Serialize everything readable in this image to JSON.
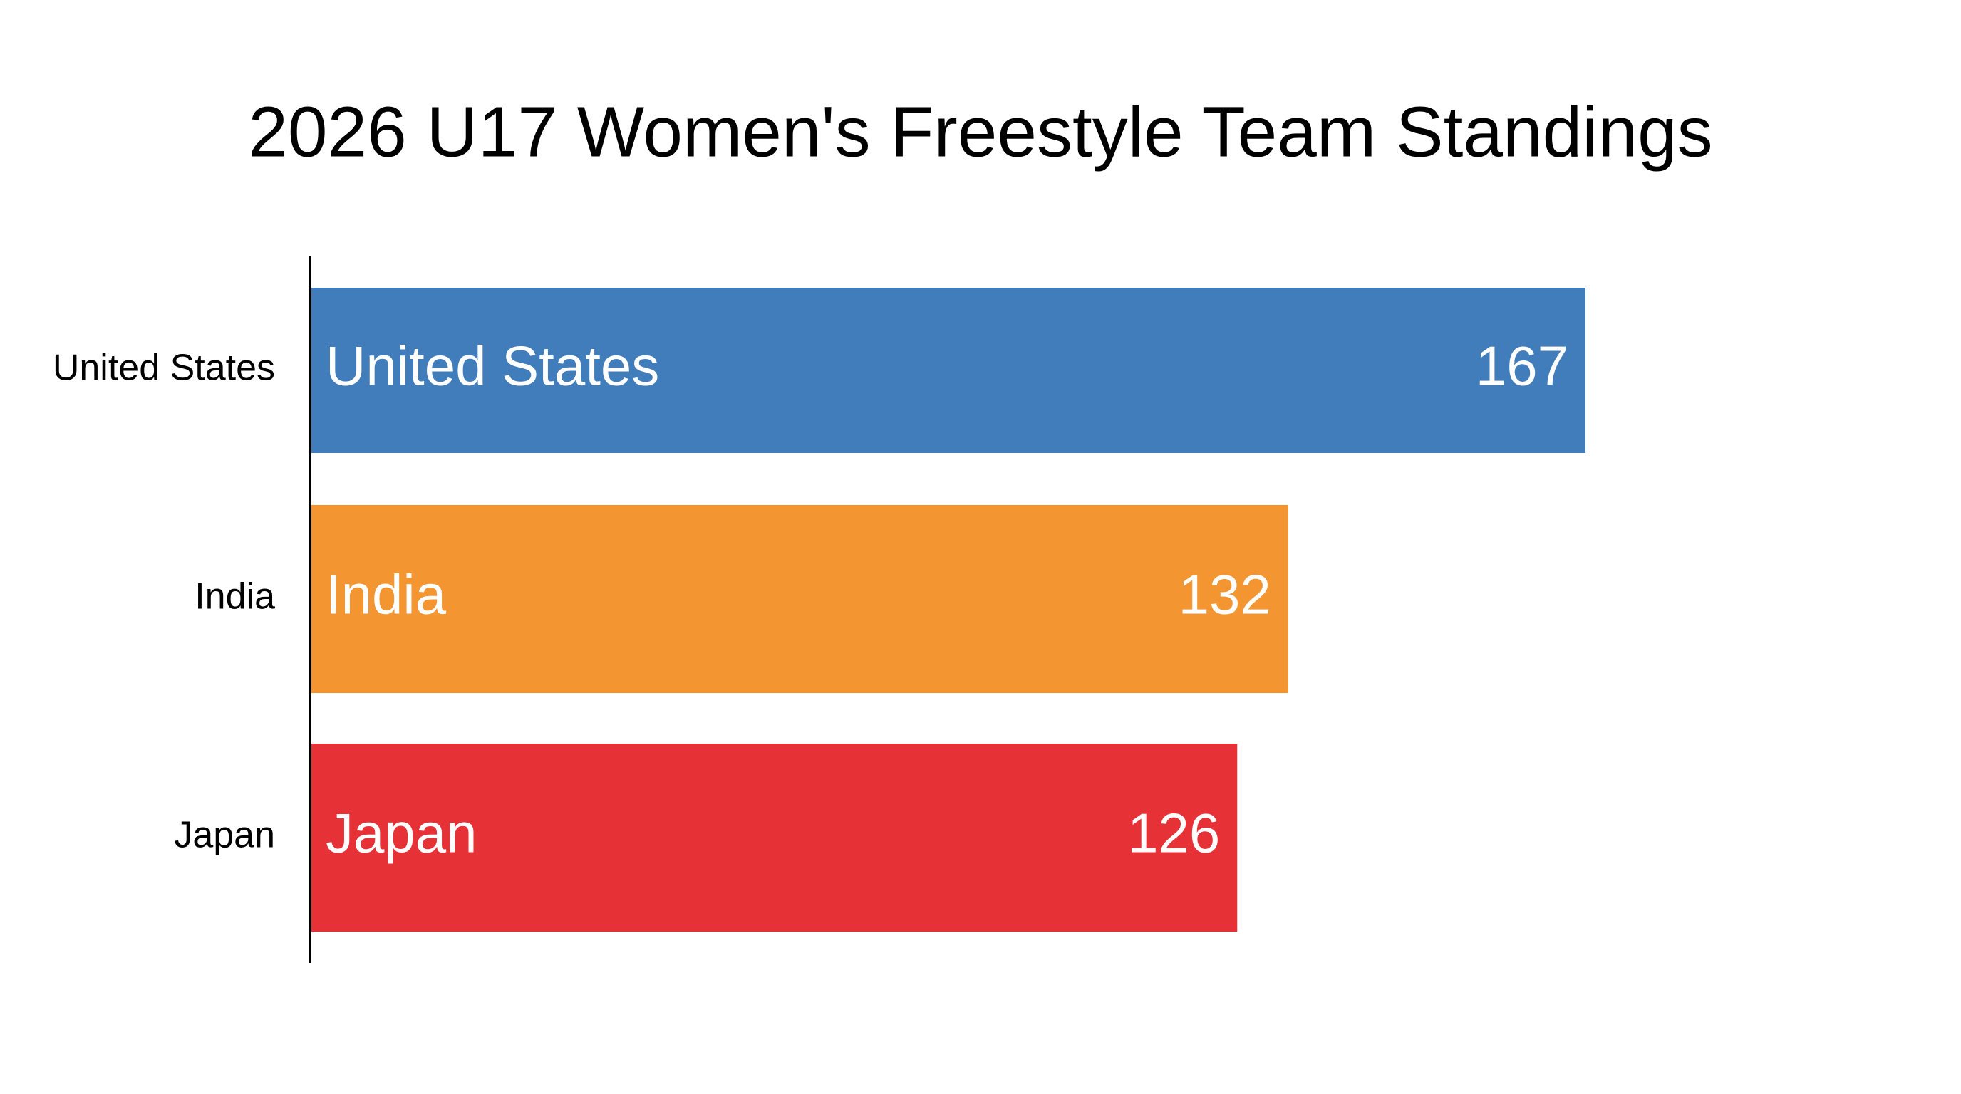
{
  "chart_data": {
    "type": "hbar",
    "title": "2026 U17 Women's Freestyle Team Standings",
    "categories": [
      "United States",
      "India",
      "Japan"
    ],
    "values": [
      167,
      132,
      126
    ],
    "colors": [
      "#417dbb",
      "#f39531",
      "#e63137"
    ],
    "xlim": [
      17,
      167
    ]
  }
}
